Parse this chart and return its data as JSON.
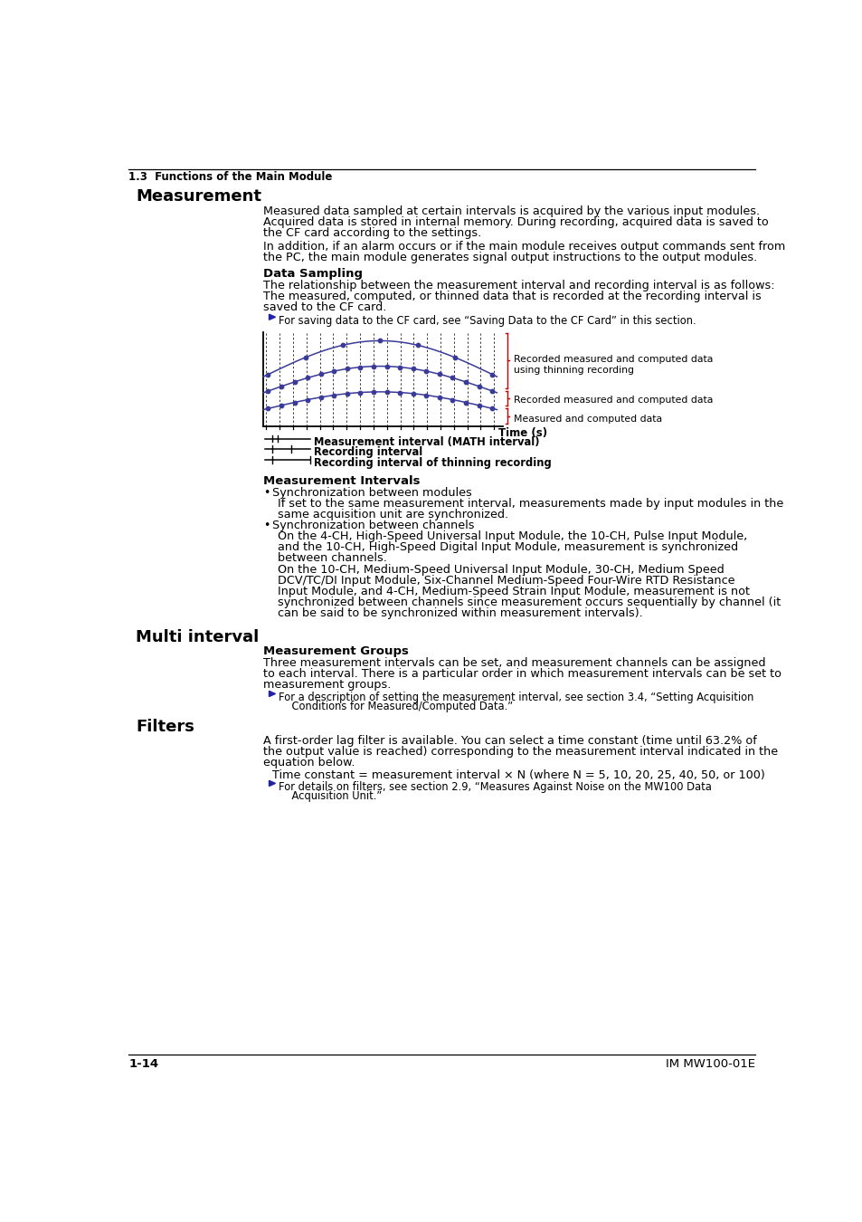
{
  "page_bg": "#ffffff",
  "header_line_text": "1.3  Functions of the Main Module",
  "section1_title": "Measurement",
  "section1_para1": [
    "Measured data sampled at certain intervals is acquired by the various input modules.",
    "Acquired data is stored in internal memory. During recording, acquired data is saved to",
    "the CF card according to the settings."
  ],
  "section1_para2": [
    "In addition, if an alarm occurs or if the main module receives output commands sent from",
    "the PC, the main module generates signal output instructions to the output modules."
  ],
  "subsection1_title": "Data Sampling",
  "subsection1_body": [
    "The relationship between the measurement interval and recording interval is as follows:",
    "The measured, computed, or thinned data that is recorded at the recording interval is",
    "saved to the CF card."
  ],
  "note1": "For saving data to the CF card, see “Saving Data to the CF Card” in this section.",
  "chart_label1": "Recorded measured and computed data\nusing thinning recording",
  "chart_label2": "Recorded measured and computed data",
  "chart_label3": "Measured and computed data",
  "chart_xlabel": "Time (s)",
  "chart_legend1": "Measurement interval (MATH interval)",
  "chart_legend2": "Recording interval",
  "chart_legend3": "Recording interval of thinning recording",
  "subsection2_title": "Measurement Intervals",
  "bullet1_title": "Synchronization between modules",
  "bullet1_body": [
    "If set to the same measurement interval, measurements made by input modules in the",
    "same acquisition unit are synchronized."
  ],
  "bullet2_title": "Synchronization between channels",
  "bullet2_body1": [
    "On the 4-CH, High-Speed Universal Input Module, the 10-CH, Pulse Input Module,",
    "and the 10-CH, High-Speed Digital Input Module, measurement is synchronized",
    "between channels."
  ],
  "bullet2_body2": [
    "On the 10-CH, Medium-Speed Universal Input Module, 30-CH, Medium Speed",
    "DCV/TC/DI Input Module, Six-Channel Medium-Speed Four-Wire RTD Resistance",
    "Input Module, and 4-CH, Medium-Speed Strain Input Module, measurement is not",
    "synchronized between channels since measurement occurs sequentially by channel (it",
    "can be said to be synchronized within measurement intervals)."
  ],
  "section2_title": "Multi interval",
  "subsection3_title": "Measurement Groups",
  "subsection3_body": [
    "Three measurement intervals can be set, and measurement channels can be assigned",
    "to each interval. There is a particular order in which measurement intervals can be set to",
    "measurement groups."
  ],
  "note2_line1": "For a description of setting the measurement interval, see section 3.4, “Setting Acquisition",
  "note2_line2": "    Conditions for Measured/Computed Data.”",
  "section3_title": "Filters",
  "section3_body": [
    "A first-order lag filter is available. You can select a time constant (time until 63.2% of",
    "the output value is reached) corresponding to the measurement interval indicated in the",
    "equation below."
  ],
  "formula": "Time constant = measurement interval × N (where N = 5, 10, 20, 25, 40, 50, or 100)",
  "note3_line1": "For details on filters, see section 2.9, “Measures Against Noise on the MW100 Data",
  "note3_line2": "    Acquisition Unit.”",
  "footer_left": "1-14",
  "footer_right": "IM MW100-01E",
  "text_color": "#000000",
  "blue_color": "#3a3a99",
  "red_color": "#cc0000",
  "arrow_color": "#2222aa"
}
